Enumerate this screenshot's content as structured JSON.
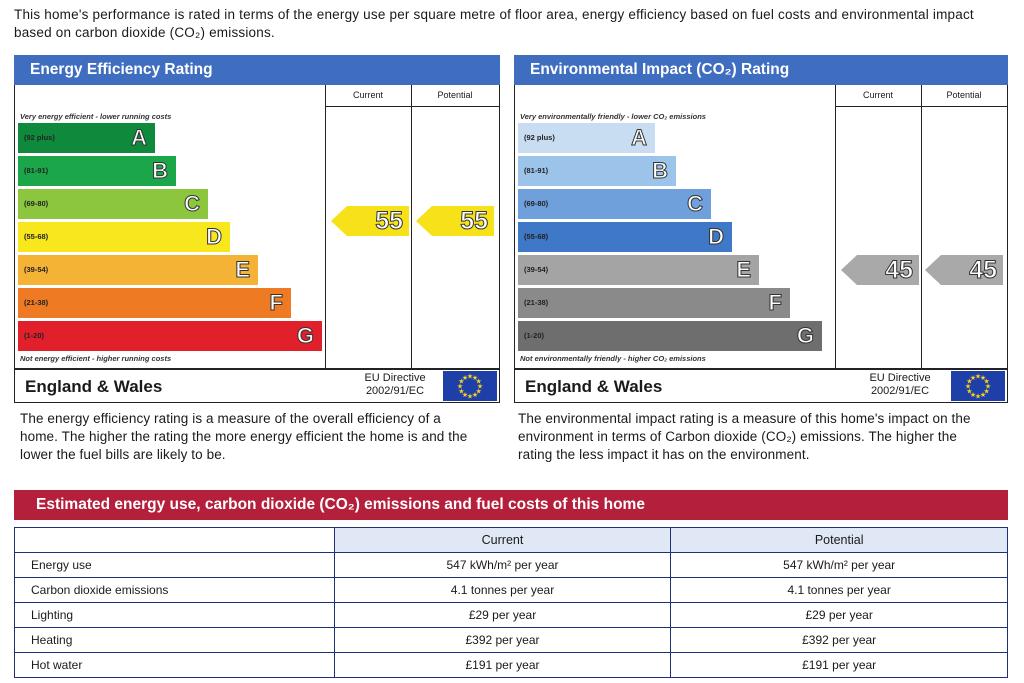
{
  "intro": "This home's performance is rated in terms of the energy use per square metre of floor area, energy efficiency based on fuel costs and environmental impact based on carbon dioxide (CO₂) emissions.",
  "colors": {
    "panel_blue": "#3f6dbf",
    "estimate_red": "#b41f3b",
    "pointer_yellow": "#f7e21a",
    "pointer_grey": "#a9a9a9"
  },
  "energy": {
    "title": "Energy Efficiency Rating",
    "col_current": "Current",
    "col_potential": "Potential",
    "top_note": "Very energy efficient - lower running costs",
    "bottom_note": "Not energy efficient - higher running costs",
    "bands": [
      {
        "range": "(92 plus)",
        "letter": "A",
        "color": "#0f8a3c"
      },
      {
        "range": "(81-91)",
        "letter": "B",
        "color": "#1ca64a"
      },
      {
        "range": "(69-80)",
        "letter": "C",
        "color": "#8cc63f"
      },
      {
        "range": "(55-68)",
        "letter": "D",
        "color": "#f8e71c"
      },
      {
        "range": "(39-54)",
        "letter": "E",
        "color": "#f5b335"
      },
      {
        "range": "(21-38)",
        "letter": "F",
        "color": "#ee7a23"
      },
      {
        "range": "(1-20)",
        "letter": "G",
        "color": "#e2202b"
      }
    ],
    "current": "55",
    "potential": "55",
    "region": "England & Wales",
    "directive_line1": "EU Directive",
    "directive_line2": "2002/91/EC",
    "description": "The energy efficiency rating is a measure of the overall efficiency of a home. The higher the rating the more energy efficient the home is and the lower the fuel bills are likely to be."
  },
  "environment": {
    "title": "Environmental Impact (CO₂) Rating",
    "col_current": "Current",
    "col_potential": "Potential",
    "top_note": "Very environmentally friendly - lower CO₂ emissions",
    "bottom_note": "Not environmentally friendly - higher CO₂ emissions",
    "bands": [
      {
        "range": "(92 plus)",
        "letter": "A",
        "color": "#c8dcf2"
      },
      {
        "range": "(81-91)",
        "letter": "B",
        "color": "#9cc3ea"
      },
      {
        "range": "(69-80)",
        "letter": "C",
        "color": "#6fa0dc"
      },
      {
        "range": "(55-68)",
        "letter": "D",
        "color": "#3f78c6"
      },
      {
        "range": "(39-54)",
        "letter": "E",
        "color": "#a4a4a4"
      },
      {
        "range": "(21-38)",
        "letter": "F",
        "color": "#8a8a8a"
      },
      {
        "range": "(1-20)",
        "letter": "G",
        "color": "#6e6e6e"
      }
    ],
    "current": "45",
    "potential": "45",
    "region": "England & Wales",
    "directive_line1": "EU Directive",
    "directive_line2": "2002/91/EC",
    "description": "The environmental impact rating is a measure of this home's impact on the environment in terms of Carbon dioxide (CO₂) emissions. The higher the rating the less impact it has on the environment."
  },
  "estimates": {
    "title": "Estimated energy use, carbon dioxide (CO₂) emissions and fuel costs of this home",
    "col_current": "Current",
    "col_potential": "Potential",
    "rows": [
      {
        "label": "Energy use",
        "current": "547 kWh/m² per year",
        "potential": "547 kWh/m² per year"
      },
      {
        "label": "Carbon dioxide emissions",
        "current": "4.1 tonnes per year",
        "potential": "4.1 tonnes per year"
      },
      {
        "label": "Lighting",
        "current": "£29 per year",
        "potential": "£29 per year"
      },
      {
        "label": "Heating",
        "current": "£392 per year",
        "potential": "£392 per year"
      },
      {
        "label": "Hot water",
        "current": "£191 per year",
        "potential": "£191 per year"
      }
    ]
  }
}
